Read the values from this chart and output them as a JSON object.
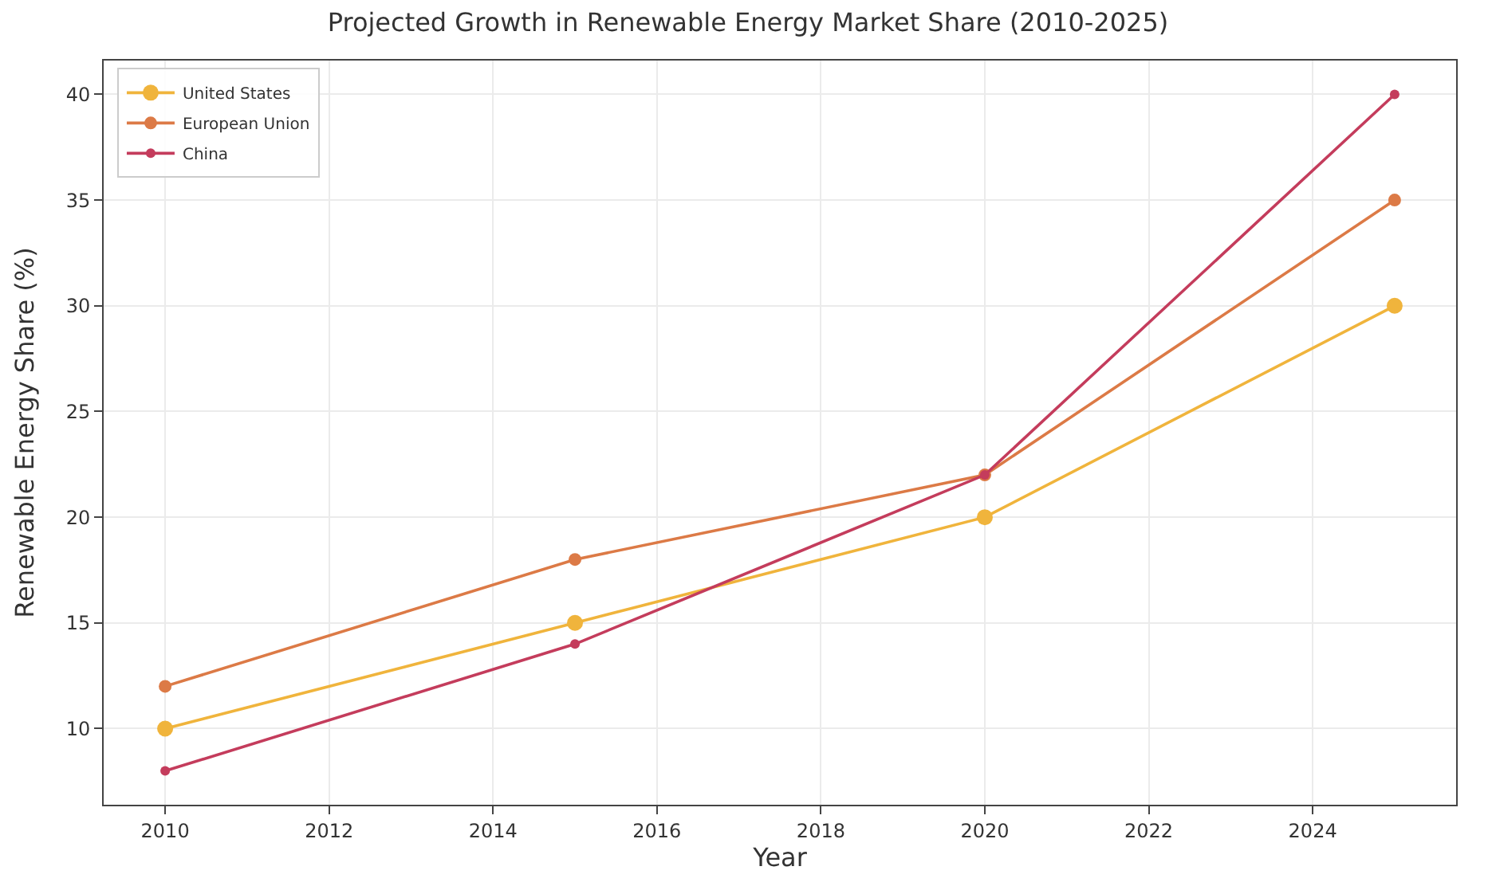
{
  "chart_data": {
    "type": "line",
    "title": "Projected Growth in Renewable Energy Market Share (2010-2025)",
    "xlabel": "Year",
    "ylabel": "Renewable Energy Share (%)",
    "x": [
      2010,
      2015,
      2020,
      2025
    ],
    "series": [
      {
        "name": "United States",
        "color": "#f0b43c",
        "values": [
          10,
          15,
          20,
          30
        ]
      },
      {
        "name": "European Union",
        "color": "#dc7a46",
        "values": [
          12,
          18,
          22,
          35
        ]
      },
      {
        "name": "China",
        "color": "#c43c5c",
        "values": [
          8,
          14,
          22,
          40
        ]
      }
    ],
    "xlim": [
      2009.25,
      2025.75
    ],
    "xticks": [
      2010,
      2012,
      2014,
      2016,
      2018,
      2020,
      2022,
      2024
    ],
    "ylim": [
      6.4,
      41.6
    ],
    "yticks": [
      10,
      15,
      20,
      25,
      30,
      35,
      40
    ],
    "grid": true,
    "legend": "top left",
    "marker": "circle",
    "line_style": "solid"
  }
}
